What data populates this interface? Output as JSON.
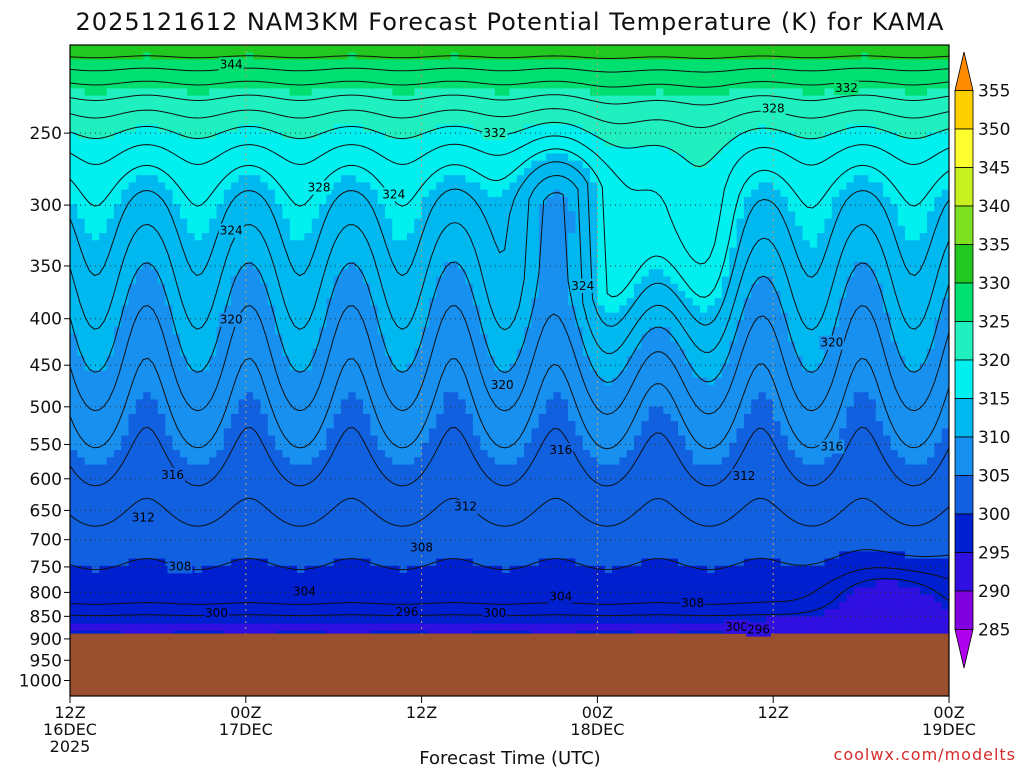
{
  "chart_data": {
    "type": "contour",
    "title": "2025121612 NAM3KM Forecast Potential Temperature (K) for KAMA",
    "xlabel": "Forecast Time (UTC)",
    "ylabel": "",
    "credit": "coolwx.com/modelts",
    "x_ticks": [
      {
        "hour": 0,
        "line1": "12Z",
        "line2": "16DEC",
        "line3": "2025"
      },
      {
        "hour": 12,
        "line1": "00Z",
        "line2": "17DEC",
        "line3": ""
      },
      {
        "hour": 24,
        "line1": "12Z",
        "line2": "",
        "line3": ""
      },
      {
        "hour": 36,
        "line1": "00Z",
        "line2": "18DEC",
        "line3": ""
      },
      {
        "hour": 48,
        "line1": "12Z",
        "line2": "",
        "line3": ""
      },
      {
        "hour": 60,
        "line1": "00Z",
        "line2": "19DEC",
        "line3": ""
      }
    ],
    "xlim_hours": [
      0,
      60
    ],
    "y_ticks_hpa": [
      250,
      300,
      350,
      400,
      450,
      500,
      550,
      600,
      650,
      700,
      750,
      800,
      850,
      900,
      950,
      1000
    ],
    "ylim_hpa": [
      1040,
      200
    ],
    "surface_pressure_hpa": 888,
    "colorbar": {
      "labels": [
        355,
        350,
        345,
        340,
        335,
        330,
        325,
        320,
        315,
        310,
        305,
        300,
        295,
        290,
        285
      ],
      "colors": [
        "#ff8c00",
        "#ffd000",
        "#ffff30",
        "#c8f020",
        "#7ee020",
        "#20c820",
        "#00e070",
        "#20f0c0",
        "#00f0f0",
        "#00b8f0",
        "#1890f0",
        "#1060e0",
        "#0020d0",
        "#3010e0",
        "#8000e0",
        "#b000f0"
      ]
    },
    "contour_levels_K": [
      296,
      298,
      300,
      302,
      304,
      306,
      308,
      310,
      312,
      314,
      316,
      318,
      320,
      322,
      324,
      326,
      328,
      330,
      332,
      334,
      336,
      338,
      340,
      342,
      344
    ],
    "contour_labels": [
      {
        "text": "344",
        "hour": 11,
        "p": 210
      },
      {
        "text": "332",
        "hour": 53,
        "p": 223
      },
      {
        "text": "328",
        "hour": 48,
        "p": 235
      },
      {
        "text": "332",
        "hour": 29,
        "p": 250
      },
      {
        "text": "328",
        "hour": 17,
        "p": 287
      },
      {
        "text": "324",
        "hour": 22.1,
        "p": 292
      },
      {
        "text": "324",
        "hour": 11,
        "p": 320
      },
      {
        "text": "324",
        "hour": 35,
        "p": 368
      },
      {
        "text": "320",
        "hour": 11,
        "p": 401
      },
      {
        "text": "320",
        "hour": 52,
        "p": 425
      },
      {
        "text": "320",
        "hour": 29.5,
        "p": 473
      },
      {
        "text": "316",
        "hour": 33.5,
        "p": 558
      },
      {
        "text": "316",
        "hour": 52,
        "p": 553
      },
      {
        "text": "316",
        "hour": 7,
        "p": 594
      },
      {
        "text": "312",
        "hour": 46,
        "p": 596
      },
      {
        "text": "312",
        "hour": 27,
        "p": 644
      },
      {
        "text": "312",
        "hour": 5,
        "p": 662
      },
      {
        "text": "308",
        "hour": 24,
        "p": 714
      },
      {
        "text": "308",
        "hour": 7.5,
        "p": 749
      },
      {
        "text": "304",
        "hour": 16,
        "p": 798
      },
      {
        "text": "304",
        "hour": 33.5,
        "p": 808
      },
      {
        "text": "308",
        "hour": 42.5,
        "p": 822
      },
      {
        "text": "300",
        "hour": 10,
        "p": 843
      },
      {
        "text": "296",
        "hour": 23,
        "p": 841
      },
      {
        "text": "300",
        "hour": 29,
        "p": 843
      },
      {
        "text": "300",
        "hour": 45.5,
        "p": 873
      },
      {
        "text": "296",
        "hour": 47,
        "p": 879
      }
    ]
  }
}
